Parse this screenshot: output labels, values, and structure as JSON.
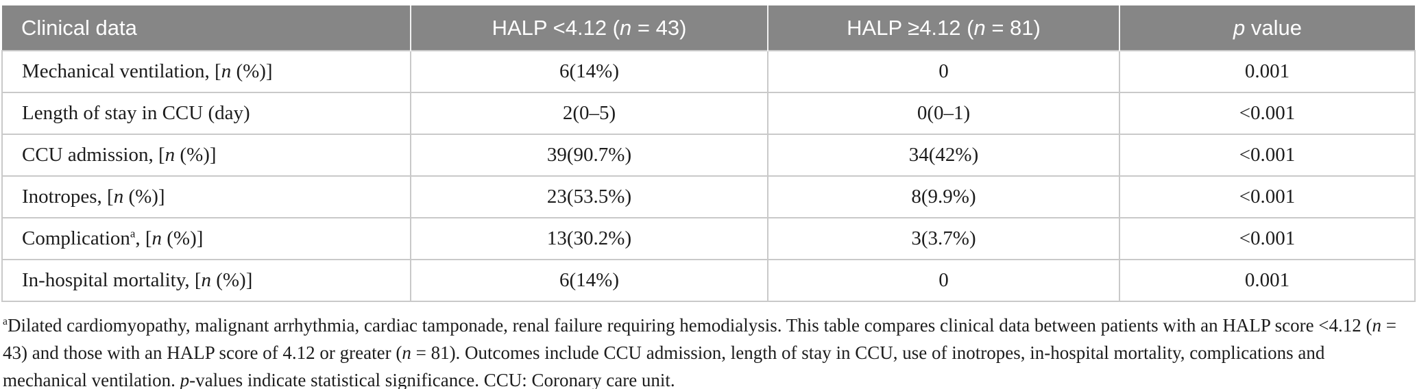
{
  "table": {
    "header": {
      "cells": [
        {
          "segments": [
            {
              "t": "Clinical data"
            }
          ]
        },
        {
          "segments": [
            {
              "t": "HALP <4.12 ("
            },
            {
              "t": "n",
              "i": true
            },
            {
              "t": " = 43)"
            }
          ]
        },
        {
          "segments": [
            {
              "t": "HALP ≥4.12 ("
            },
            {
              "t": "n",
              "i": true
            },
            {
              "t": " = 81)"
            }
          ]
        },
        {
          "segments": [
            {
              "t": "p",
              "i": true
            },
            {
              "t": " value"
            }
          ]
        }
      ]
    },
    "rows": [
      {
        "label": [
          {
            "t": "Mechanical ventilation, ["
          },
          {
            "t": "n",
            "i": true
          },
          {
            "t": " (%)]"
          }
        ],
        "values": [
          "6(14%)",
          "0"
        ],
        "p": "0.001"
      },
      {
        "label": [
          {
            "t": "Length of stay in CCU (day)"
          }
        ],
        "values": [
          "2(0–5)",
          "0(0–1)"
        ],
        "p": "<0.001"
      },
      {
        "label": [
          {
            "t": "CCU admission, ["
          },
          {
            "t": "n",
            "i": true
          },
          {
            "t": " (%)]"
          }
        ],
        "values": [
          "39(90.7%)",
          "34(42%)"
        ],
        "p": "<0.001"
      },
      {
        "label": [
          {
            "t": "Inotropes, ["
          },
          {
            "t": "n",
            "i": true
          },
          {
            "t": " (%)]"
          }
        ],
        "values": [
          "23(53.5%)",
          "8(9.9%)"
        ],
        "p": "<0.001"
      },
      {
        "label": [
          {
            "t": "Complication"
          },
          {
            "t": "a",
            "sup": true
          },
          {
            "t": ", ["
          },
          {
            "t": "n",
            "i": true
          },
          {
            "t": " (%)]"
          }
        ],
        "values": [
          "13(30.2%)",
          "3(3.7%)"
        ],
        "p": "<0.001"
      },
      {
        "label": [
          {
            "t": "In-hospital mortality, ["
          },
          {
            "t": "n",
            "i": true
          },
          {
            "t": " (%)]"
          }
        ],
        "values": [
          "6(14%)",
          "0"
        ],
        "p": "0.001"
      }
    ]
  },
  "footnote": {
    "segments": [
      {
        "t": "a",
        "sup": true
      },
      {
        "t": "Dilated cardiomyopathy, malignant arrhythmia, cardiac tamponade, renal failure requiring hemodialysis. This table compares clinical data between patients with an HALP score <4.12 ("
      },
      {
        "t": "n",
        "i": true
      },
      {
        "t": " = 43) and those with an HALP score of 4.12 or greater ("
      },
      {
        "t": "n",
        "i": true
      },
      {
        "t": " = 81). Outcomes include CCU admission, length of stay in CCU, use of inotropes, in-hospital mortality, complications and mechanical ventilation. "
      },
      {
        "t": "p",
        "i": true
      },
      {
        "t": "-values indicate statistical significance. CCU: Coronary care unit."
      }
    ]
  },
  "colors": {
    "header_bg": "#868686",
    "header_text": "#ffffff",
    "grid_line": "#c9c9c9",
    "body_text": "#1c1c1c"
  }
}
